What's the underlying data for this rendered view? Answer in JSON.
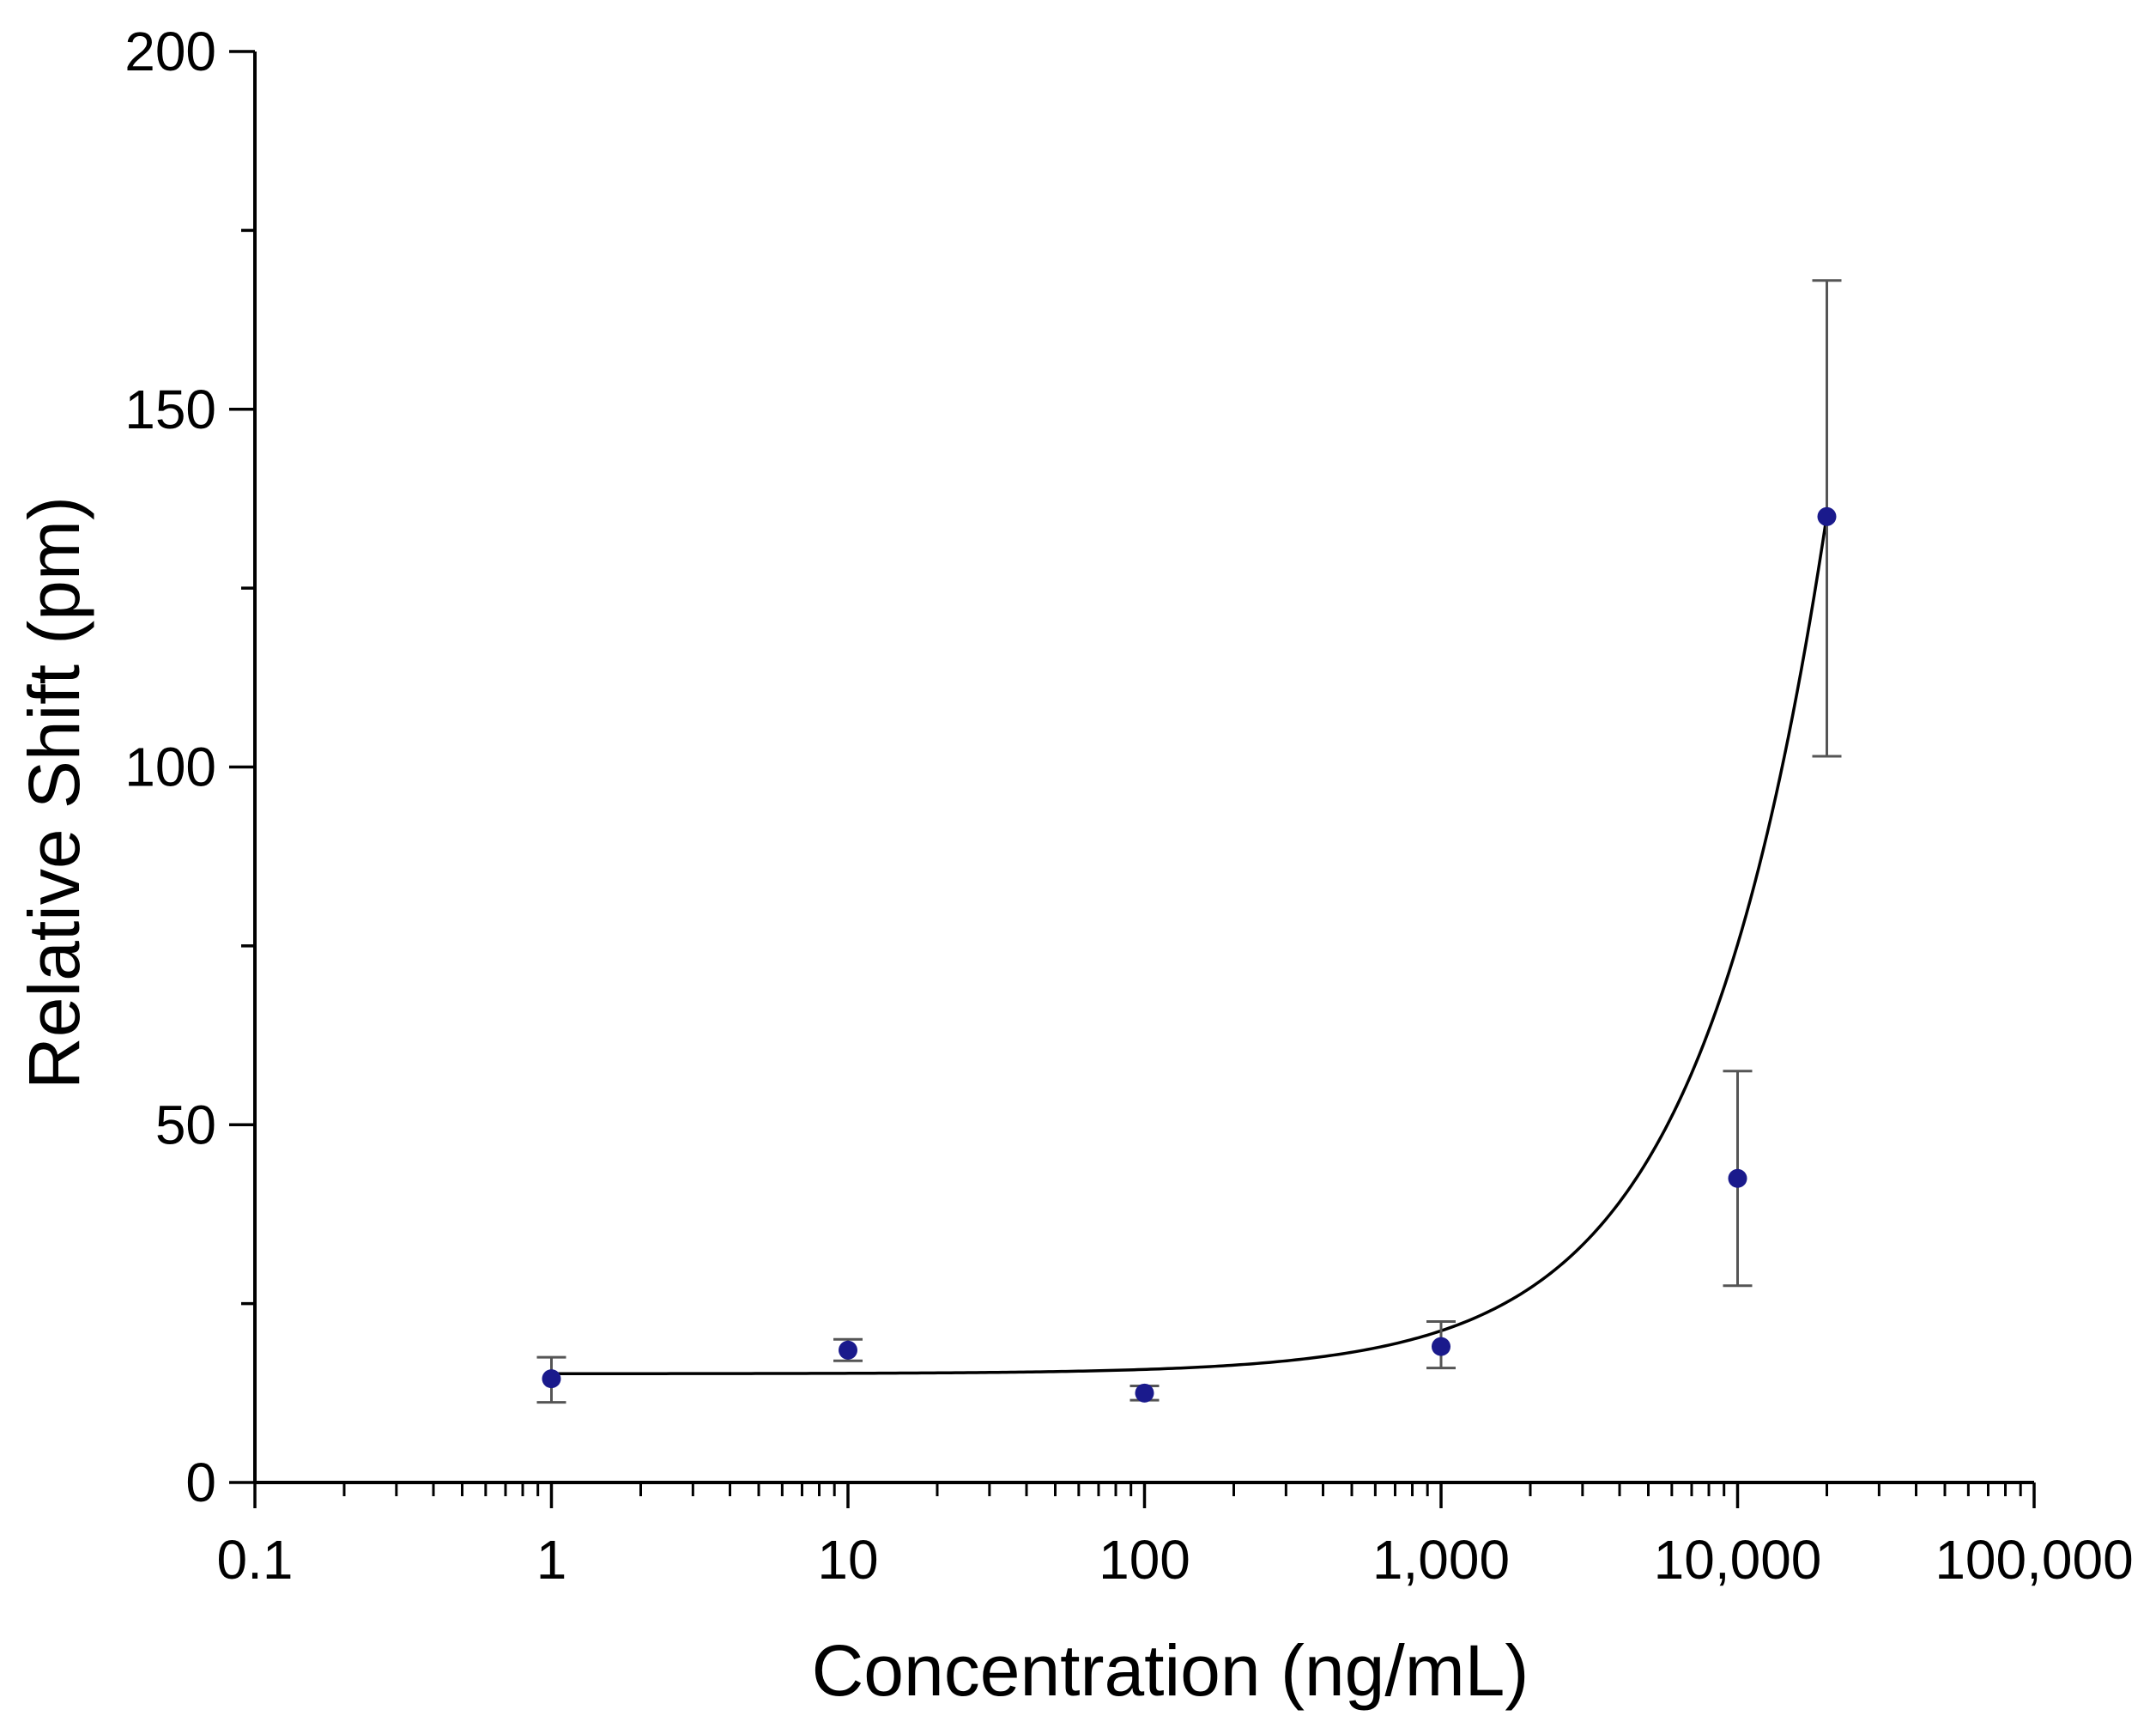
{
  "chart_data": {
    "type": "scatter",
    "title": "",
    "xlabel": "Concentration (ng/mL)",
    "ylabel": "Relative Shift (pm)",
    "xscale": "log",
    "xlim": [
      0.1,
      100000
    ],
    "ylim": [
      0,
      200
    ],
    "xticks": [
      {
        "value": 0.1,
        "label": "0.1"
      },
      {
        "value": 1,
        "label": "1"
      },
      {
        "value": 10,
        "label": "10"
      },
      {
        "value": 100,
        "label": "100"
      },
      {
        "value": 1000,
        "label": "1,000"
      },
      {
        "value": 10000,
        "label": "10,000"
      },
      {
        "value": 100000,
        "label": "100,000"
      }
    ],
    "yticks": [
      {
        "value": 0,
        "label": "0"
      },
      {
        "value": 50,
        "label": "50"
      },
      {
        "value": 100,
        "label": "100"
      },
      {
        "value": 150,
        "label": "150"
      },
      {
        "value": 200,
        "label": "200"
      }
    ],
    "grid": false,
    "series": [
      {
        "marker_color": "#1a1a8c",
        "errorbar_color": "#555555",
        "points": [
          {
            "x": 1,
            "y": 14.5,
            "err_low": 11.2,
            "err_high": 17.5
          },
          {
            "x": 10,
            "y": 18.5,
            "err_low": 17.0,
            "err_high": 20.0
          },
          {
            "x": 100,
            "y": 12.5,
            "err_low": 11.5,
            "err_high": 13.5
          },
          {
            "x": 1000,
            "y": 19.0,
            "err_low": 16.0,
            "err_high": 22.5
          },
          {
            "x": 10000,
            "y": 42.5,
            "err_low": 27.5,
            "err_high": 57.5
          },
          {
            "x": 20000,
            "y": 135.0,
            "err_low": 101.5,
            "err_high": 168.0
          }
        ]
      }
    ],
    "fit_curve": {
      "color": "#000000",
      "model": "linear",
      "baseline": 15.2,
      "slope_per_ng_ml": 0.006
    }
  }
}
